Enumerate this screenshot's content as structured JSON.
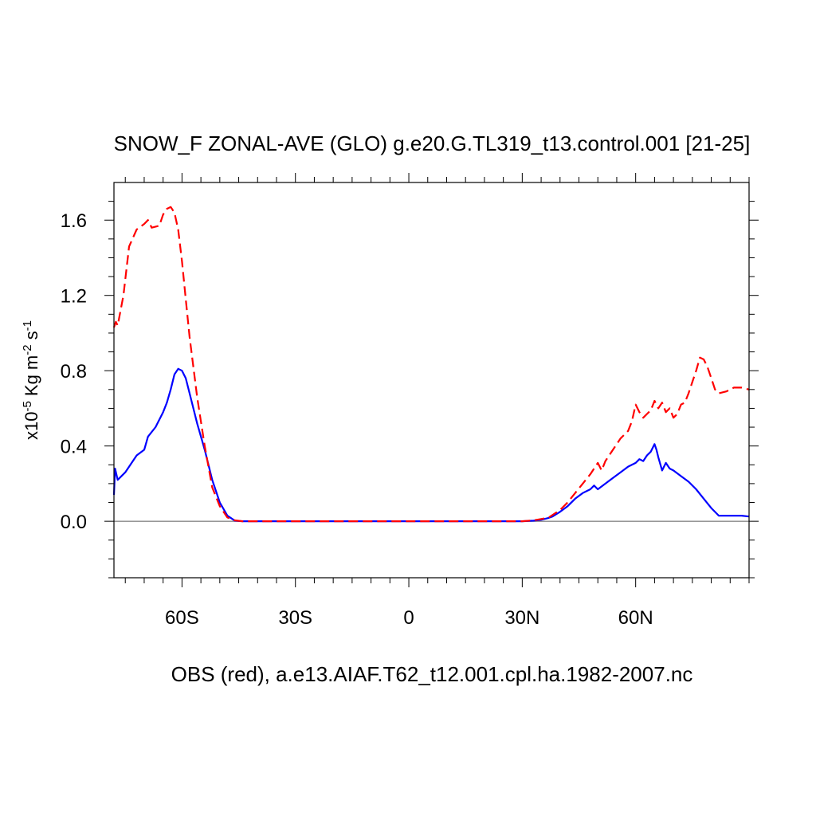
{
  "chart_data": {
    "type": "line",
    "title": "SNOW_F ZONAL-AVE (GLO) g.e20.G.TL319_t13.control.001 [21-25]",
    "xlabel": "OBS (red), a.e13.AIAF.T62_t12.001.cpl.ha.1982-2007.nc",
    "ylabel": {
      "base": "x10",
      "exp": "-5",
      "unit": "Kg m",
      "unit_exp": "-2",
      "unit2": "s",
      "unit2_exp": "-1"
    },
    "xlim": [
      -78,
      90
    ],
    "ylim": [
      -0.3,
      1.8
    ],
    "x_ticks": [
      {
        "value": -60,
        "label": "60S"
      },
      {
        "value": -30,
        "label": "30S"
      },
      {
        "value": 0,
        "label": "0"
      },
      {
        "value": 30,
        "label": "30N"
      },
      {
        "value": 60,
        "label": "60N"
      }
    ],
    "y_ticks": [
      {
        "value": 0.0,
        "label": "0.0"
      },
      {
        "value": 0.4,
        "label": "0.4"
      },
      {
        "value": 0.8,
        "label": "0.8"
      },
      {
        "value": 1.2,
        "label": "1.2"
      },
      {
        "value": 1.6,
        "label": "1.6"
      }
    ],
    "zero_line": 0,
    "series": [
      {
        "name": "g.e20.G.TL319_t13.control.001",
        "color": "#0000ff",
        "dash": "solid",
        "x": [
          -78,
          -77.7,
          -77,
          -75,
          -73,
          -72,
          -70,
          -69,
          -67,
          -65,
          -64,
          -63,
          -62,
          -61,
          -60,
          -59,
          -58,
          -56,
          -54,
          -52,
          -50,
          -48,
          -46,
          -44,
          -40,
          -30,
          -20,
          -10,
          0,
          10,
          20,
          30,
          33,
          35,
          37,
          38,
          40,
          42,
          44,
          46,
          48,
          49,
          50,
          52,
          54,
          56,
          58,
          60,
          61,
          62,
          63,
          64,
          65,
          65.5,
          66,
          67,
          68,
          69,
          70,
          72,
          74,
          76,
          78,
          80,
          82,
          85,
          88,
          90
        ],
        "y": [
          0.14,
          0.28,
          0.22,
          0.26,
          0.32,
          0.35,
          0.38,
          0.45,
          0.5,
          0.58,
          0.63,
          0.7,
          0.78,
          0.81,
          0.8,
          0.76,
          0.68,
          0.52,
          0.38,
          0.22,
          0.1,
          0.03,
          0.003,
          0.0,
          0.0,
          0.0,
          0.0,
          0.0,
          0.0,
          0.0,
          0.0,
          0.0,
          0.003,
          0.008,
          0.018,
          0.025,
          0.05,
          0.08,
          0.12,
          0.15,
          0.17,
          0.19,
          0.17,
          0.2,
          0.23,
          0.26,
          0.29,
          0.31,
          0.33,
          0.32,
          0.35,
          0.37,
          0.41,
          0.38,
          0.34,
          0.27,
          0.31,
          0.28,
          0.27,
          0.24,
          0.21,
          0.17,
          0.12,
          0.07,
          0.03,
          0.03,
          0.03,
          0.025
        ]
      },
      {
        "name": "OBS",
        "color": "#ff0000",
        "dash": "dashed",
        "x": [
          -78,
          -77.5,
          -77,
          -75.5,
          -74,
          -72,
          -70,
          -69,
          -68,
          -66,
          -65,
          -64,
          -63,
          -62,
          -61,
          -60,
          -59,
          -58,
          -56,
          -54,
          -52,
          -50,
          -48,
          -46,
          -44,
          -40,
          -30,
          -20,
          -10,
          0,
          10,
          20,
          30,
          33,
          35,
          37,
          40,
          42,
          44,
          46,
          48,
          50,
          51,
          52,
          54,
          56,
          58,
          59,
          60,
          61,
          62,
          63,
          64,
          65,
          66,
          67,
          68,
          69,
          70,
          71,
          72,
          73,
          74,
          75,
          76,
          77,
          78,
          79,
          80,
          81,
          82,
          84,
          86,
          88,
          90
        ],
        "y": [
          1.03,
          1.06,
          1.04,
          1.2,
          1.46,
          1.55,
          1.58,
          1.6,
          1.56,
          1.57,
          1.63,
          1.66,
          1.67,
          1.64,
          1.55,
          1.38,
          1.18,
          0.98,
          0.66,
          0.4,
          0.18,
          0.08,
          0.02,
          0.005,
          0.0,
          0.0,
          0.0,
          0.0,
          0.0,
          0.0,
          0.0,
          0.0,
          0.0,
          0.005,
          0.012,
          0.02,
          0.06,
          0.1,
          0.15,
          0.2,
          0.25,
          0.31,
          0.27,
          0.32,
          0.38,
          0.44,
          0.48,
          0.53,
          0.62,
          0.58,
          0.55,
          0.57,
          0.59,
          0.64,
          0.6,
          0.63,
          0.58,
          0.6,
          0.55,
          0.57,
          0.62,
          0.63,
          0.68,
          0.74,
          0.8,
          0.87,
          0.86,
          0.82,
          0.76,
          0.7,
          0.68,
          0.69,
          0.71,
          0.71,
          0.7
        ]
      }
    ]
  }
}
